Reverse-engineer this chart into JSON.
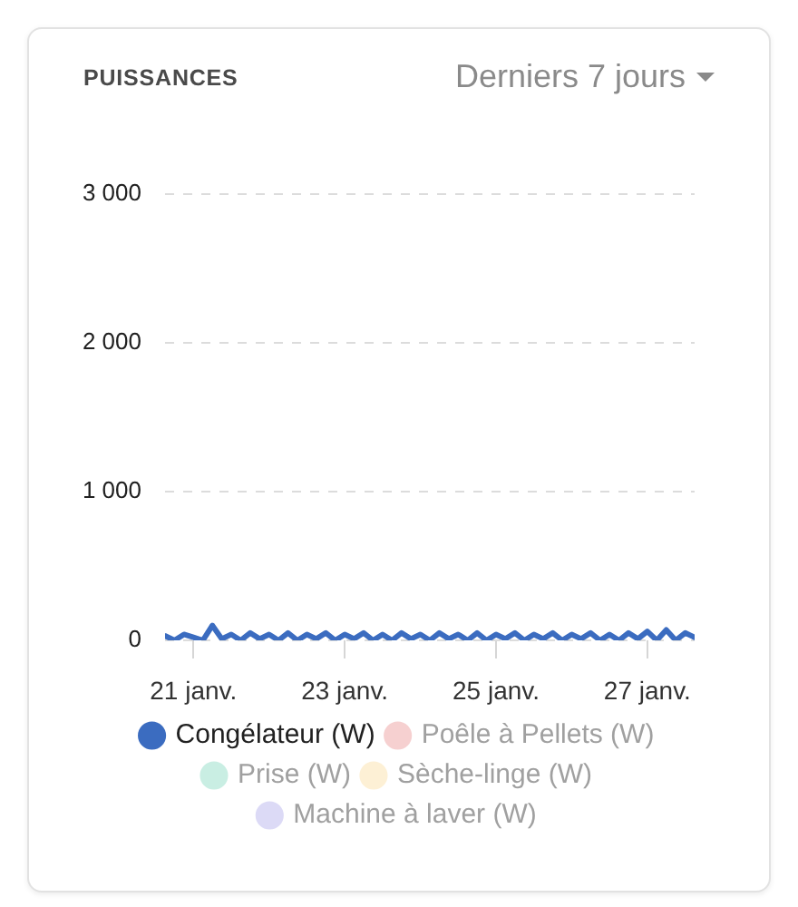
{
  "chart_data": {
    "type": "line",
    "title": "PUISSANCES",
    "subtitle": "Derniers 7 jours",
    "x": [
      "--01-20T15:00",
      "--01-20T18:00",
      "--01-20T21:00",
      "--01-21T00:00",
      "--01-21T03:00",
      "--01-21T06:00",
      "--01-21T09:00",
      "--01-21T12:00",
      "--01-21T15:00",
      "--01-21T18:00",
      "--01-21T21:00",
      "--01-22T00:00",
      "--01-22T03:00",
      "--01-22T06:00",
      "--01-22T09:00",
      "--01-22T12:00",
      "--01-22T15:00",
      "--01-22T18:00",
      "--01-22T21:00",
      "--01-23T00:00",
      "--01-23T03:00",
      "--01-23T06:00",
      "--01-23T09:00",
      "--01-23T12:00",
      "--01-23T15:00",
      "--01-23T18:00",
      "--01-23T21:00",
      "--01-24T00:00",
      "--01-24T03:00",
      "--01-24T06:00",
      "--01-24T09:00",
      "--01-24T12:00",
      "--01-24T15:00",
      "--01-24T18:00",
      "--01-24T21:00",
      "--01-25T00:00",
      "--01-25T03:00",
      "--01-25T06:00",
      "--01-25T09:00",
      "--01-25T12:00",
      "--01-25T15:00",
      "--01-25T18:00",
      "--01-25T21:00",
      "--01-26T00:00",
      "--01-26T03:00",
      "--01-26T06:00",
      "--01-26T09:00",
      "--01-26T12:00",
      "--01-26T15:00",
      "--01-26T18:00",
      "--01-26T21:00",
      "--01-27T00:00",
      "--01-27T03:00",
      "--01-27T06:00",
      "--01-27T09:00",
      "--01-27T12:00",
      "--01-27T15:00"
    ],
    "series": [
      {
        "name": "Congélateur (W)",
        "color": "#3b6cc0",
        "values": [
          30,
          0,
          40,
          20,
          0,
          100,
          10,
          40,
          0,
          50,
          10,
          40,
          0,
          50,
          0,
          40,
          10,
          50,
          0,
          40,
          10,
          50,
          0,
          40,
          0,
          50,
          10,
          40,
          0,
          50,
          10,
          40,
          0,
          50,
          0,
          40,
          10,
          50,
          0,
          40,
          10,
          50,
          0,
          40,
          10,
          50,
          0,
          40,
          0,
          50,
          10,
          60,
          0,
          70,
          0,
          50,
          20
        ]
      },
      {
        "name": "Poêle à Pellets (W)",
        "color": "#f6d0d0",
        "values": [
          null,
          null,
          null,
          null,
          null,
          null,
          null,
          null,
          null,
          null,
          null,
          null,
          null,
          null,
          null,
          null,
          null,
          null,
          null,
          null,
          null,
          null,
          null,
          null,
          null,
          null,
          null,
          null,
          null,
          null,
          null,
          null,
          null,
          null,
          null,
          null,
          null,
          null,
          null,
          null,
          null,
          null,
          null,
          null,
          null,
          null,
          null,
          null,
          null,
          null,
          null,
          null,
          null,
          null,
          null,
          null,
          null
        ]
      },
      {
        "name": "Prise (W)",
        "color": "#c9eee3",
        "values": [
          null,
          null,
          null,
          null,
          null,
          null,
          null,
          null,
          null,
          null,
          null,
          null,
          null,
          null,
          null,
          null,
          null,
          null,
          null,
          null,
          null,
          null,
          null,
          null,
          null,
          null,
          null,
          null,
          null,
          null,
          null,
          null,
          null,
          null,
          null,
          null,
          null,
          null,
          null,
          null,
          null,
          null,
          null,
          null,
          null,
          null,
          null,
          null,
          null,
          null,
          null,
          null,
          null,
          null,
          null,
          null,
          null
        ]
      },
      {
        "name": "Sèche-linge (W)",
        "color": "#fdf0d5",
        "values": [
          null,
          null,
          null,
          null,
          null,
          null,
          null,
          null,
          null,
          null,
          null,
          null,
          null,
          null,
          null,
          null,
          null,
          null,
          null,
          null,
          null,
          null,
          null,
          null,
          null,
          null,
          null,
          null,
          null,
          null,
          null,
          null,
          null,
          null,
          null,
          null,
          null,
          null,
          null,
          null,
          null,
          null,
          null,
          null,
          null,
          null,
          null,
          null,
          null,
          null,
          null,
          null,
          null,
          null,
          null,
          null,
          null
        ]
      },
      {
        "name": "Machine à laver (W)",
        "color": "#dcdaf6",
        "values": [
          null,
          null,
          null,
          null,
          null,
          null,
          null,
          null,
          null,
          null,
          null,
          null,
          null,
          null,
          null,
          null,
          null,
          null,
          null,
          null,
          null,
          null,
          null,
          null,
          null,
          null,
          null,
          null,
          null,
          null,
          null,
          null,
          null,
          null,
          null,
          null,
          null,
          null,
          null,
          null,
          null,
          null,
          null,
          null,
          null,
          null,
          null,
          null,
          null,
          null,
          null,
          null,
          null,
          null,
          null,
          null,
          null
        ]
      }
    ],
    "xlim": [
      "--01-20T15:00",
      "--01-27T15:00"
    ],
    "xticks": [
      {
        "value": "--01-21",
        "label": "21 janv."
      },
      {
        "value": "--01-23",
        "label": "23 janv."
      },
      {
        "value": "--01-25",
        "label": "25 janv."
      },
      {
        "value": "--01-27",
        "label": "27 janv."
      }
    ],
    "ylim": [
      0,
      3000
    ],
    "yticks": [
      0,
      {
        "value": 1000,
        "label": "1 000"
      },
      {
        "value": 2000,
        "label": "2 000"
      },
      {
        "value": 3000,
        "label": "3 000"
      }
    ],
    "grid": "y",
    "legend": "bottom",
    "marker": "none",
    "line_style": "solid"
  }
}
